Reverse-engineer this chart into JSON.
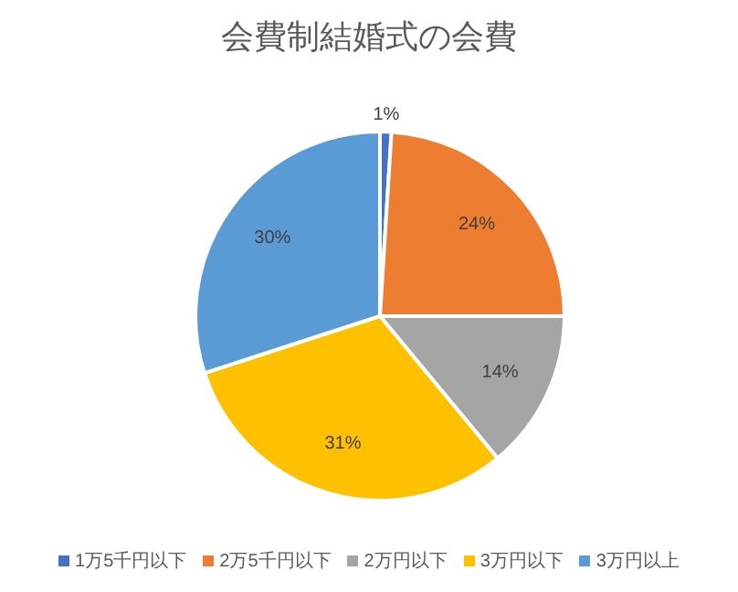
{
  "chart_data": {
    "type": "pie",
    "title": "会費制結婚式の会費",
    "categories": [
      "1万5千円以下",
      "2万5千円以下",
      "2万円以下",
      "3万円以下",
      "3万円以上"
    ],
    "values": [
      1,
      24,
      14,
      31,
      30
    ],
    "value_labels": [
      "1%",
      "24%",
      "14%",
      "31%",
      "30%"
    ],
    "colors": [
      "#4472c4",
      "#ed7d31",
      "#a5a5a5",
      "#ffc000",
      "#5b9bd5"
    ],
    "legend": "bottom"
  }
}
